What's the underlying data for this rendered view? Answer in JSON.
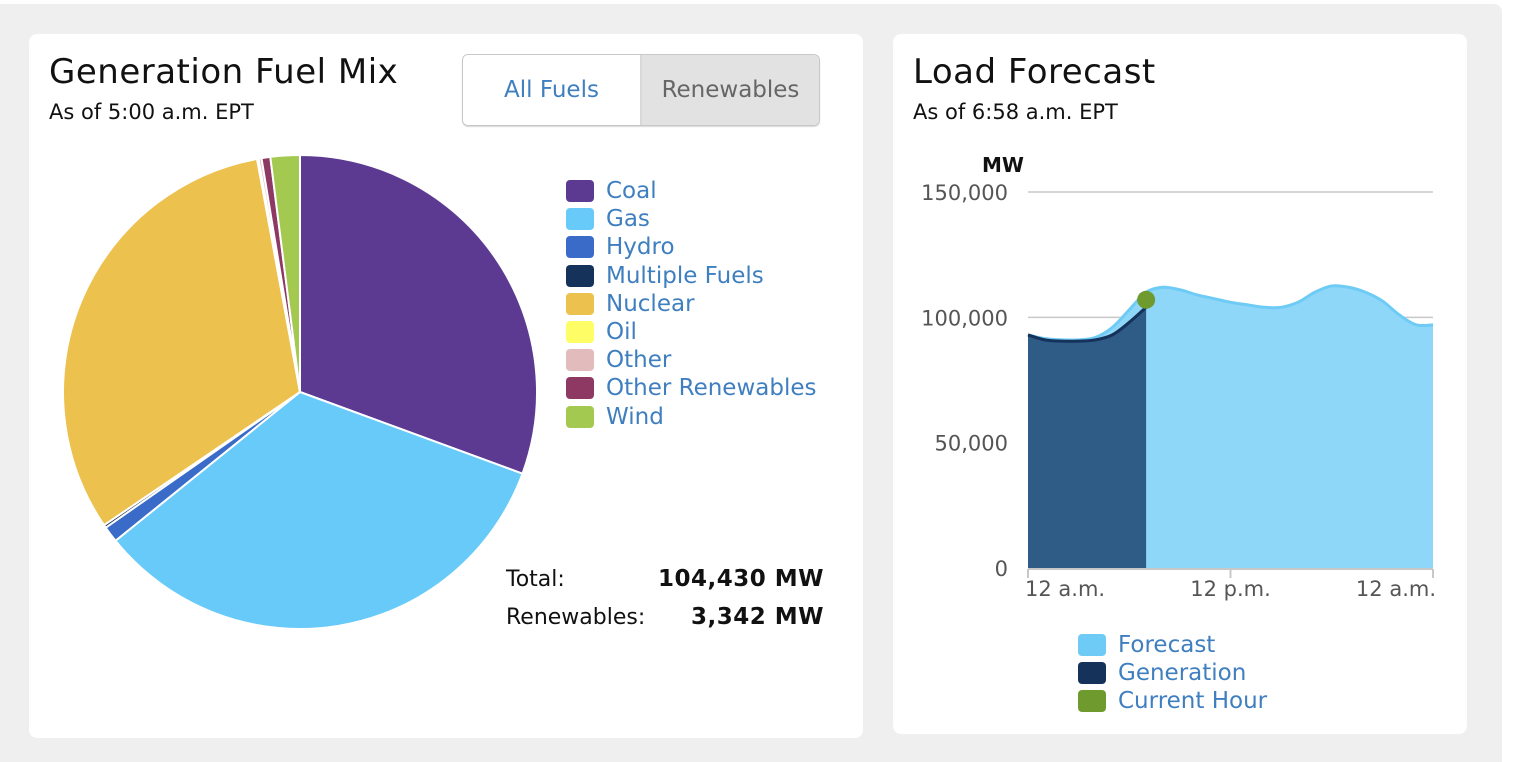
{
  "fuel_mix": {
    "title": "Generation Fuel Mix",
    "subtitle": "As of 5:00 a.m. EPT",
    "tabs": [
      {
        "label": "All Fuels",
        "active": true
      },
      {
        "label": "Renewables",
        "active": false
      }
    ],
    "totals": {
      "total_label": "Total:",
      "total_value": "104,430 MW",
      "renewables_label": "Renewables:",
      "renewables_value": "3,342 MW"
    }
  },
  "load_forecast": {
    "title": "Load Forecast",
    "subtitle": "As of 6:58 a.m. EPT",
    "legend": [
      {
        "label": "Forecast",
        "color": "#6ecbf5"
      },
      {
        "label": "Generation",
        "color": "#14325a"
      },
      {
        "label": "Current Hour",
        "color": "#6e9a2e"
      }
    ]
  },
  "chart_data": [
    {
      "type": "pie",
      "title": "Generation Fuel Mix",
      "legend_position": "right",
      "categories": [
        "Coal",
        "Gas",
        "Hydro",
        "Multiple Fuels",
        "Nuclear",
        "Oil",
        "Other",
        "Other Renewables",
        "Wind"
      ],
      "values": [
        30.6,
        33.6,
        1.1,
        0.2,
        31.6,
        0.1,
        0.2,
        0.6,
        2.0
      ],
      "unit": "percent",
      "colors": [
        "#5c3a92",
        "#67caf8",
        "#3a6bc8",
        "#14325a",
        "#ecc14e",
        "#fffd66",
        "#e2bcbc",
        "#8e3864",
        "#a4c951"
      ]
    },
    {
      "type": "area",
      "title": "Load Forecast",
      "ylabel": "MW",
      "ylim": [
        0,
        150000
      ],
      "yticks": [
        0,
        50000,
        100000,
        150000
      ],
      "ytick_labels": [
        "0",
        "50,000",
        "100,000",
        "150,000"
      ],
      "xlim": [
        0,
        24
      ],
      "xticks": [
        0,
        12,
        24
      ],
      "xtick_labels": [
        "12 a.m.",
        "12 p.m.",
        "12 a.m."
      ],
      "grid": true,
      "legend_position": "bottom",
      "series": [
        {
          "name": "Forecast",
          "color": "#6ecbf5",
          "x": [
            0,
            1,
            2,
            3,
            4,
            5,
            6,
            7,
            8,
            9,
            10,
            11,
            12,
            13,
            14,
            15,
            16,
            17,
            18,
            19,
            20,
            21,
            22,
            23,
            24
          ],
          "y": [
            93000,
            91500,
            91000,
            91000,
            92000,
            96000,
            103000,
            110000,
            112000,
            111000,
            109000,
            107500,
            106000,
            105000,
            104000,
            104000,
            106000,
            110000,
            112500,
            112000,
            110000,
            106500,
            101000,
            97000,
            97000
          ]
        },
        {
          "name": "Generation",
          "color": "#14325a",
          "x": [
            0,
            1,
            2,
            3,
            4,
            5,
            6,
            7
          ],
          "y": [
            93000,
            91000,
            90500,
            90500,
            91000,
            93000,
            98000,
            104000
          ]
        },
        {
          "name": "Current Hour",
          "color": "#6e9a2e",
          "x": [
            7
          ],
          "y": [
            107000
          ]
        }
      ]
    }
  ]
}
